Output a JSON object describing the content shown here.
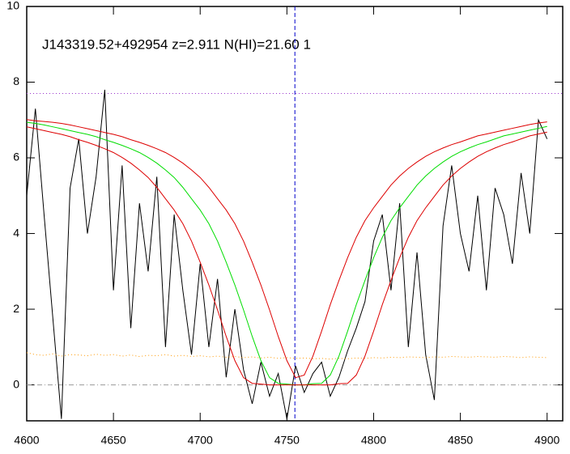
{
  "chart_data": {
    "type": "line",
    "title": "J143319.52+492954 z=2.911 N(HI)=21.60 1",
    "x": [
      4600,
      4605,
      4610,
      4615,
      4620,
      4625,
      4630,
      4635,
      4640,
      4645,
      4650,
      4655,
      4660,
      4665,
      4670,
      4675,
      4680,
      4685,
      4690,
      4695,
      4700,
      4705,
      4710,
      4715,
      4720,
      4725,
      4730,
      4735,
      4740,
      4745,
      4750,
      4755,
      4760,
      4765,
      4770,
      4775,
      4780,
      4785,
      4790,
      4795,
      4800,
      4805,
      4810,
      4815,
      4820,
      4825,
      4830,
      4835,
      4840,
      4845,
      4850,
      4855,
      4860,
      4865,
      4870,
      4875,
      4880,
      4885,
      4890,
      4895,
      4900
    ],
    "series": [
      {
        "color": "#000000",
        "dash": "none",
        "values": [
          5.0,
          7.3,
          4.5,
          1.8,
          -0.9,
          5.2,
          6.5,
          4.0,
          5.5,
          7.8,
          2.5,
          5.8,
          1.5,
          4.8,
          3.0,
          5.5,
          1.0,
          4.5,
          2.5,
          0.8,
          3.2,
          1.0,
          2.8,
          0.2,
          2.0,
          0.4,
          -0.5,
          0.6,
          -0.3,
          0.3,
          -0.9,
          0.5,
          -0.2,
          0.3,
          0.6,
          -0.3,
          0.2,
          0.9,
          1.5,
          2.2,
          3.8,
          4.5,
          2.5,
          4.8,
          1.0,
          3.5,
          0.8,
          -0.4,
          4.2,
          5.8,
          4.0,
          3.0,
          5.0,
          2.5,
          5.2,
          4.5,
          3.2,
          5.6,
          4.0,
          7.0,
          6.5
        ]
      },
      {
        "color": "#ff9900",
        "dash": "1 3",
        "values": [
          0.85,
          0.8,
          0.78,
          0.82,
          0.76,
          0.8,
          0.79,
          0.77,
          0.81,
          0.78,
          0.8,
          0.76,
          0.79,
          0.75,
          0.78,
          0.77,
          0.8,
          0.76,
          0.78,
          0.75,
          0.77,
          0.74,
          0.76,
          0.73,
          0.75,
          0.72,
          0.74,
          0.71,
          0.73,
          0.7,
          0.72,
          0.7,
          0.71,
          0.69,
          0.7,
          0.68,
          0.7,
          0.69,
          0.71,
          0.7,
          0.72,
          0.71,
          0.73,
          0.72,
          0.74,
          0.73,
          0.72,
          0.74,
          0.73,
          0.75,
          0.74,
          0.73,
          0.75,
          0.74,
          0.73,
          0.75,
          0.74,
          0.72,
          0.74,
          0.73,
          0.72
        ]
      },
      {
        "color": "#00dd00",
        "dash": "none",
        "values": [
          6.94,
          6.91,
          6.87,
          6.82,
          6.77,
          6.72,
          6.67,
          6.62,
          6.56,
          6.48,
          6.41,
          6.33,
          6.24,
          6.14,
          6.01,
          5.86,
          5.68,
          5.48,
          5.22,
          4.92,
          4.62,
          4.26,
          3.8,
          3.24,
          2.64,
          1.98,
          1.28,
          0.64,
          0.19,
          0.04,
          0.02,
          0,
          0,
          0.03,
          0.04,
          0.26,
          0.76,
          1.42,
          2.12,
          2.76,
          3.36,
          3.9,
          4.34,
          4.68,
          4.98,
          5.28,
          5.52,
          5.72,
          5.89,
          6.04,
          6.16,
          6.26,
          6.35,
          6.42,
          6.5,
          6.58,
          6.63,
          6.68,
          6.73,
          6.78,
          6.83
        ]
      },
      {
        "color": "#dd0000",
        "dash": "none",
        "values": [
          7.01,
          6.98,
          6.96,
          6.94,
          6.91,
          6.87,
          6.82,
          6.77,
          6.72,
          6.67,
          6.62,
          6.56,
          6.48,
          6.41,
          6.33,
          6.24,
          6.14,
          6.01,
          5.86,
          5.68,
          5.48,
          5.22,
          4.92,
          4.62,
          4.26,
          3.8,
          3.24,
          2.64,
          1.98,
          1.28,
          0.64,
          0.19,
          0.26,
          0.76,
          1.42,
          2.12,
          2.76,
          3.36,
          3.9,
          4.34,
          4.68,
          4.98,
          5.28,
          5.52,
          5.72,
          5.89,
          6.04,
          6.16,
          6.26,
          6.35,
          6.42,
          6.5,
          6.58,
          6.63,
          6.68,
          6.73,
          6.78,
          6.83,
          6.88,
          6.92,
          6.95
        ]
      },
      {
        "color": "#dd0000",
        "dash": "none",
        "values": [
          6.82,
          6.77,
          6.72,
          6.67,
          6.62,
          6.56,
          6.48,
          6.41,
          6.33,
          6.24,
          6.14,
          6.01,
          5.86,
          5.68,
          5.48,
          5.22,
          4.92,
          4.62,
          4.26,
          3.8,
          3.24,
          2.64,
          1.98,
          1.28,
          0.64,
          0.19,
          0.04,
          0.02,
          0,
          0,
          0,
          0,
          0,
          0,
          0,
          0,
          0.03,
          0.04,
          0.26,
          0.76,
          1.42,
          2.12,
          2.76,
          3.36,
          3.9,
          4.34,
          4.68,
          4.98,
          5.28,
          5.52,
          5.72,
          5.89,
          6.04,
          6.16,
          6.26,
          6.35,
          6.42,
          6.5,
          6.58,
          6.63,
          6.68
        ]
      }
    ],
    "hlines": [
      {
        "value": 7.7,
        "color": "#9933cc",
        "dash": "1 3"
      },
      {
        "value": 0,
        "color": "#999999",
        "dash": "6 3 1 3"
      }
    ],
    "vlines": [
      {
        "value": 4754.6,
        "color": "#0000cc",
        "dash": "5 3"
      }
    ],
    "xlim": [
      4600,
      4909
    ],
    "xticks": [
      4600,
      4650,
      4700,
      4750,
      4800,
      4850,
      4900
    ],
    "ylim": [
      -0.95,
      10
    ],
    "yticks": [
      0,
      2,
      4,
      6,
      8,
      10
    ]
  }
}
